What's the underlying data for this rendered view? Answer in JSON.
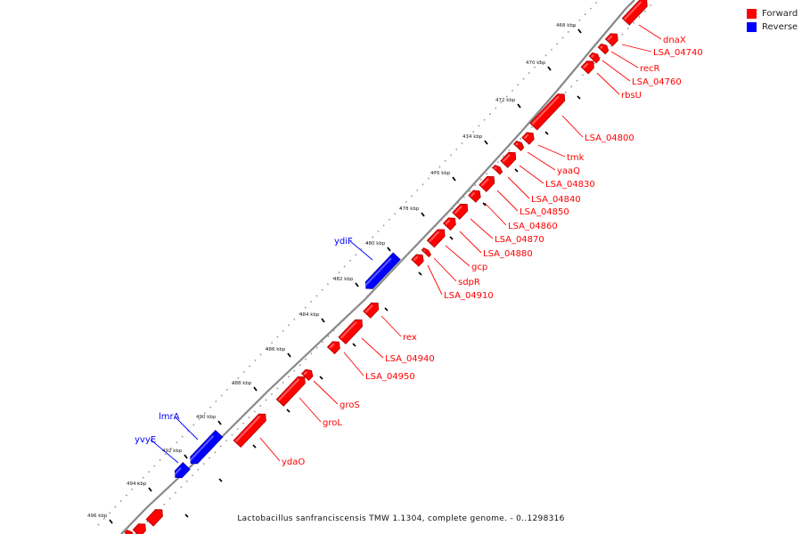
{
  "legend": [
    {
      "label": "Forward",
      "color": "#ff0000"
    },
    {
      "label": "Reverse",
      "color": "#0000ff"
    }
  ],
  "colors": {
    "forward": "#ff0000",
    "reverse": "#0000ff",
    "backbone": "#888888"
  },
  "footer": "Lactobacillus sanfranciscensis TMW 1.1304, complete genome. - 0..1298316",
  "ticks": [
    "468 kbp",
    "470 kbp",
    "472 kbp",
    "474 kbp",
    "476 kbp",
    "478 kbp",
    "480 kbp",
    "482 kbp",
    "484 kbp",
    "486 kbp",
    "488 kbp",
    "490 kbp",
    "492 kbp",
    "494 kbp",
    "496 kbp"
  ],
  "features": [
    {
      "name": "dnaX",
      "strand": "forward"
    },
    {
      "name": "LSA_04740",
      "strand": "forward"
    },
    {
      "name": "recR",
      "strand": "forward"
    },
    {
      "name": "LSA_04760",
      "strand": "forward"
    },
    {
      "name": "rbsU",
      "strand": "forward"
    },
    {
      "name": "LSA_04800",
      "strand": "forward"
    },
    {
      "name": "tmk",
      "strand": "forward"
    },
    {
      "name": "yaaQ",
      "strand": "forward"
    },
    {
      "name": "LSA_04830",
      "strand": "forward"
    },
    {
      "name": "LSA_04840",
      "strand": "forward"
    },
    {
      "name": "LSA_04850",
      "strand": "forward"
    },
    {
      "name": "LSA_04860",
      "strand": "forward"
    },
    {
      "name": "LSA_04870",
      "strand": "forward"
    },
    {
      "name": "LSA_04880",
      "strand": "forward"
    },
    {
      "name": "gcp",
      "strand": "forward"
    },
    {
      "name": "sdpR",
      "strand": "forward"
    },
    {
      "name": "LSA_04910",
      "strand": "forward"
    },
    {
      "name": "ydiF",
      "strand": "reverse"
    },
    {
      "name": "rex",
      "strand": "forward"
    },
    {
      "name": "LSA_04940",
      "strand": "forward"
    },
    {
      "name": "LSA_04950",
      "strand": "forward"
    },
    {
      "name": "groS",
      "strand": "forward"
    },
    {
      "name": "groL",
      "strand": "forward"
    },
    {
      "name": "ydaO",
      "strand": "forward"
    },
    {
      "name": "lmrA",
      "strand": "reverse"
    },
    {
      "name": "yvyE",
      "strand": "reverse"
    }
  ]
}
